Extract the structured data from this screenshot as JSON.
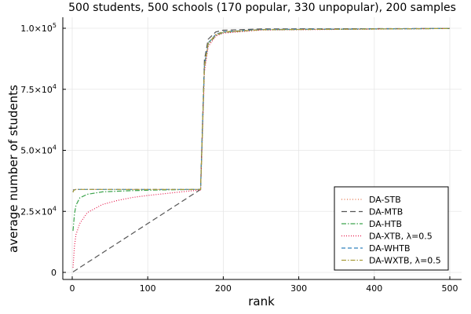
{
  "chart_data": {
    "type": "line",
    "title": "500 students, 500 schools (170 popular, 330 unpopular), 200 samples",
    "xlabel": "rank",
    "ylabel": "average number of students",
    "xlim": [
      0,
      500
    ],
    "ylim": [
      0,
      100000
    ],
    "grid": true,
    "legend_position": "bottom-right",
    "x_ticks": [
      {
        "value": 0,
        "label": "0"
      },
      {
        "value": 100,
        "label": "100"
      },
      {
        "value": 200,
        "label": "200"
      },
      {
        "value": 300,
        "label": "300"
      },
      {
        "value": 400,
        "label": "400"
      },
      {
        "value": 500,
        "label": "500"
      }
    ],
    "y_ticks": [
      {
        "value": 0,
        "mantissa": "0",
        "exponent": ""
      },
      {
        "value": 25000,
        "mantissa": "2.5×10",
        "exponent": "4"
      },
      {
        "value": 50000,
        "mantissa": "5.0×10",
        "exponent": "4"
      },
      {
        "value": 75000,
        "mantissa": "7.5×10",
        "exponent": "4"
      },
      {
        "value": 100000,
        "mantissa": "1.0×10",
        "exponent": "5"
      }
    ],
    "series": [
      {
        "name": "DA-STB",
        "color": "#e26f46",
        "dash": "1,2.5",
        "x": [
          1,
          2,
          5,
          10,
          170,
          172,
          175,
          180,
          190,
          200,
          250,
          500
        ],
        "y": [
          33800,
          34000,
          34000,
          34000,
          34000,
          55000,
          85000,
          94000,
          97500,
          98600,
          99500,
          99900
        ]
      },
      {
        "name": "DA-MTB",
        "color": "#555555",
        "dash": "7,4",
        "x": [
          1,
          20,
          50,
          100,
          150,
          170,
          172,
          175,
          180,
          190,
          200,
          250,
          500
        ],
        "y": [
          200,
          4000,
          10000,
          20000,
          30000,
          34000,
          56000,
          87000,
          95500,
          98500,
          99200,
          99700,
          99900
        ]
      },
      {
        "name": "DA-HTB",
        "color": "#3da44d",
        "dash": "6,2,1.5,2",
        "x": [
          1,
          3,
          5,
          10,
          20,
          40,
          80,
          120,
          170,
          172,
          175,
          180,
          190,
          200,
          250,
          500
        ],
        "y": [
          17000,
          24000,
          27500,
          30500,
          32000,
          33000,
          33500,
          33800,
          34000,
          54000,
          84000,
          93500,
          97000,
          98300,
          99400,
          99900
        ]
      },
      {
        "name": "DA-XTB, λ=0.5",
        "color": "#e6194b",
        "dash": "1,2",
        "x": [
          1,
          3,
          5,
          10,
          20,
          40,
          60,
          80,
          100,
          130,
          170,
          172,
          175,
          180,
          190,
          200,
          250,
          500
        ],
        "y": [
          2000,
          11000,
          15500,
          20000,
          24500,
          27800,
          29500,
          30700,
          31500,
          32500,
          33800,
          52000,
          82000,
          92500,
          96800,
          98000,
          99300,
          99900
        ]
      },
      {
        "name": "DA-WHTB",
        "color": "#3182bd",
        "dash": "5,3",
        "x": [
          1,
          2,
          5,
          10,
          170,
          172,
          175,
          180,
          190,
          200,
          250,
          500
        ],
        "y": [
          33000,
          33800,
          34000,
          34000,
          34000,
          55000,
          85000,
          94000,
          97500,
          98600,
          99500,
          99900
        ]
      },
      {
        "name": "DA-WXTB, λ=0.5",
        "color": "#a89b3a",
        "dash": "6,2,1.5,2",
        "x": [
          1,
          2,
          5,
          10,
          170,
          172,
          175,
          180,
          190,
          200,
          250,
          500
        ],
        "y": [
          32800,
          33600,
          34000,
          34000,
          34000,
          54500,
          84500,
          93800,
          97300,
          98500,
          99400,
          99900
        ]
      }
    ]
  }
}
